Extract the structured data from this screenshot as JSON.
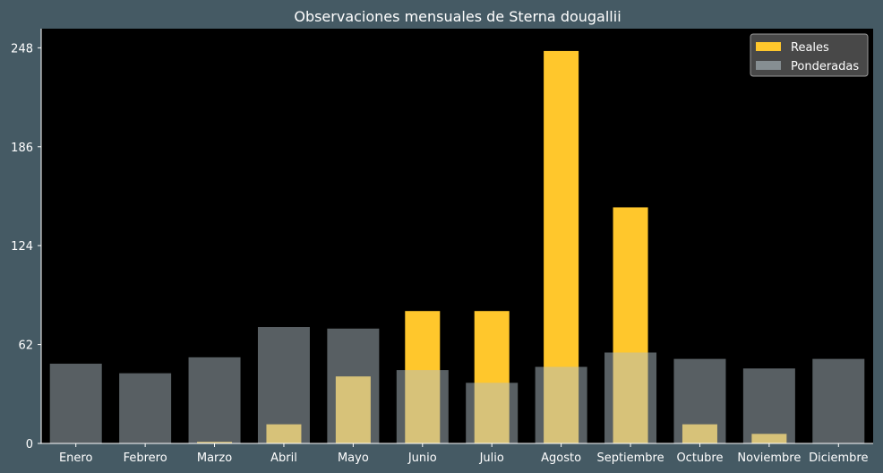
{
  "chart_data": {
    "type": "bar",
    "title": "Observaciones mensuales de Sterna dougallii",
    "categories": [
      "Enero",
      "Febrero",
      "Marzo",
      "Abril",
      "Mayo",
      "Junio",
      "Julio",
      "Agosto",
      "Septiembre",
      "Octubre",
      "Noviembre",
      "Diciembre"
    ],
    "series": [
      {
        "name": "Reales",
        "color": "#ffc72c",
        "values": [
          0,
          0,
          1,
          12,
          42,
          83,
          83,
          246,
          148,
          12,
          6,
          0
        ]
      },
      {
        "name": "Ponderadas",
        "color": "#b0bec5",
        "values": [
          50,
          44,
          54,
          73,
          72,
          46,
          38,
          48,
          57,
          53,
          47,
          53
        ]
      }
    ],
    "yticks": [
      0,
      62,
      124,
      186,
      248
    ],
    "ylim": [
      0,
      260
    ],
    "xlabel": "",
    "ylabel": "",
    "legend_position": "top-right",
    "grid": false,
    "colors": {
      "page_background": "#455a64",
      "plot_background": "#000000",
      "text": "#ffffff"
    }
  }
}
